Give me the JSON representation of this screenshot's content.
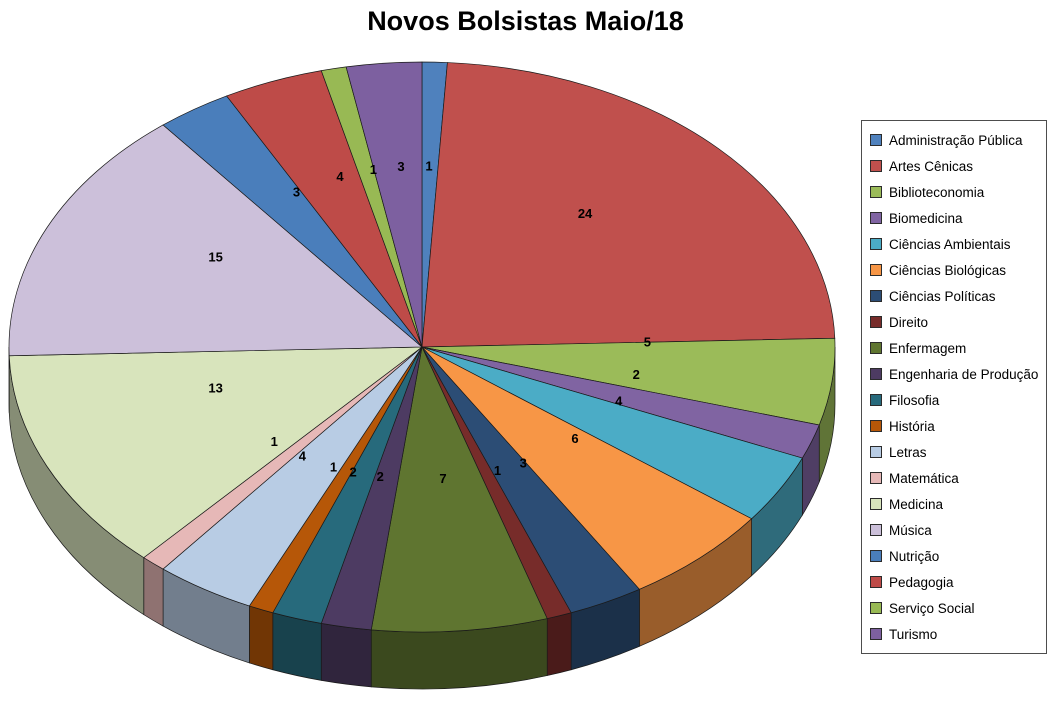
{
  "chart_data": {
    "type": "pie",
    "effect": "3d",
    "title": "Novos Bolsistas Maio/18",
    "total": 102,
    "start_angle_deg": 0,
    "direction": "clockwise",
    "data_labels": "value",
    "legend_position": "right",
    "categories": [
      "Administração Pública",
      "Artes Cênicas",
      "Biblioteconomia",
      "Biomedicina",
      "Ciências Ambientais",
      "Ciências Biológicas",
      "Ciências Políticas",
      "Direito",
      "Enfermagem",
      "Engenharia de Produção",
      "Filosofia",
      "História",
      "Letras",
      "Matemática",
      "Medicina",
      "Música",
      "Nutrição",
      "Pedagogia",
      "Serviço Social",
      "Turismo"
    ],
    "values": [
      1,
      24,
      5,
      2,
      4,
      6,
      3,
      1,
      7,
      2,
      2,
      1,
      4,
      1,
      13,
      15,
      3,
      4,
      1,
      3
    ],
    "colors": [
      "#4F81BD",
      "#C0504D",
      "#9BBB59",
      "#8064A2",
      "#4BACC6",
      "#F79646",
      "#2C4D75",
      "#772C2A",
      "#5F7530",
      "#4D3B62",
      "#276A7C",
      "#B65708",
      "#B8CCE4",
      "#E6B8B7",
      "#D8E4BC",
      "#CCC0DA",
      "#4A7EBB",
      "#BE4B48",
      "#98B954",
      "#7D60A0"
    ]
  }
}
